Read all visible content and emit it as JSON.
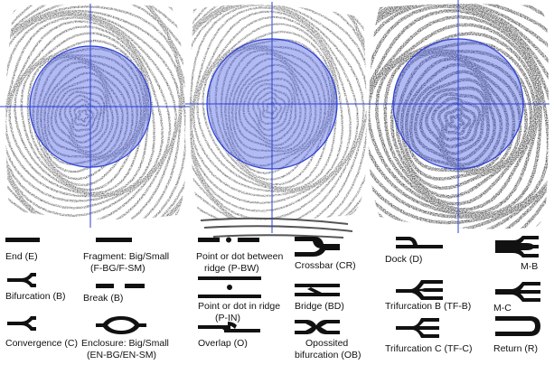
{
  "colors": {
    "ink": "#111111",
    "circle_fill": "#4a5ee8",
    "circle_stroke": "#2b3fd6",
    "crosshair": "#2b3fd6"
  },
  "fingerprints": [
    {
      "name": "fingerprint-1"
    },
    {
      "name": "fingerprint-2"
    },
    {
      "name": "fingerprint-3"
    }
  ],
  "minutiae": [
    {
      "id": "end",
      "label": "End (E)"
    },
    {
      "id": "fragment",
      "label_line1": "Fragment: Big/Small",
      "label_line2": "(F-BG/F-SM)"
    },
    {
      "id": "point-between",
      "label_line1": "Point or dot  between",
      "label_line2": "ridge (P-BW)"
    },
    {
      "id": "crossbar",
      "label": "Crossbar (CR)"
    },
    {
      "id": "dock",
      "label": "Dock (D)"
    },
    {
      "id": "m-b",
      "label": "M-B"
    },
    {
      "id": "bifurcation",
      "label": "Bifurcation (B)"
    },
    {
      "id": "break",
      "label": "Break (B)"
    },
    {
      "id": "point-in",
      "label_line1": "Point or dot in ridge",
      "label_line2": "(P-IN)"
    },
    {
      "id": "bridge",
      "label": "Bridge (BD)"
    },
    {
      "id": "trifurcation-b",
      "label": "Trifurcation B (TF-B)"
    },
    {
      "id": "m-c",
      "label": "M-C"
    },
    {
      "id": "convergence",
      "label": "Convergence (C)"
    },
    {
      "id": "enclosure",
      "label_line1": "Enclosure: Big/Small",
      "label_line2": "(EN-BG/EN-SM)"
    },
    {
      "id": "overlap",
      "label": "Overlap (O)"
    },
    {
      "id": "opposited",
      "label_line1": "Opossited",
      "label_line2": "bifurcation (OB)"
    },
    {
      "id": "trifurcation-c",
      "label": "Trifurcation C (TF-C)"
    },
    {
      "id": "return",
      "label": "Return (R)"
    }
  ]
}
